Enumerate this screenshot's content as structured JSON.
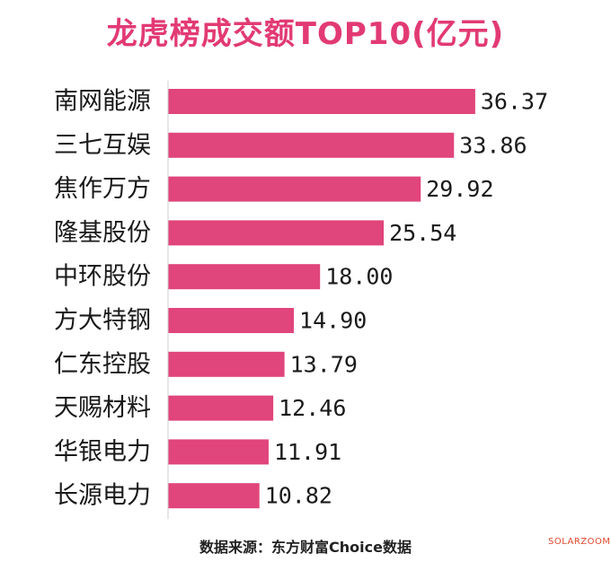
{
  "chart_data": {
    "type": "bar",
    "orientation": "horizontal",
    "title": "龙虎榜成交额TOP10(亿元)",
    "categories": [
      "南网能源",
      "三七互娱",
      "焦作万方",
      "隆基股份",
      "中环股份",
      "方大特钢",
      "仁东控股",
      "天赐材料",
      "华银电力",
      "长源电力"
    ],
    "values": [
      36.37,
      33.86,
      29.92,
      25.54,
      18.0,
      14.9,
      13.79,
      12.46,
      11.91,
      10.82
    ],
    "value_labels": [
      "36.37",
      "33.86",
      "29.92",
      "25.54",
      "18.00",
      "14.90",
      "13.79",
      "12.46",
      "11.91",
      "10.82"
    ],
    "bar_color": "#e0457b",
    "grid": false,
    "legend": "none"
  },
  "title_color": "#e23a74",
  "source": "数据来源：东方财富Choice数据",
  "watermark": "SOLARZOOM",
  "watermark_color": "#e0492f"
}
